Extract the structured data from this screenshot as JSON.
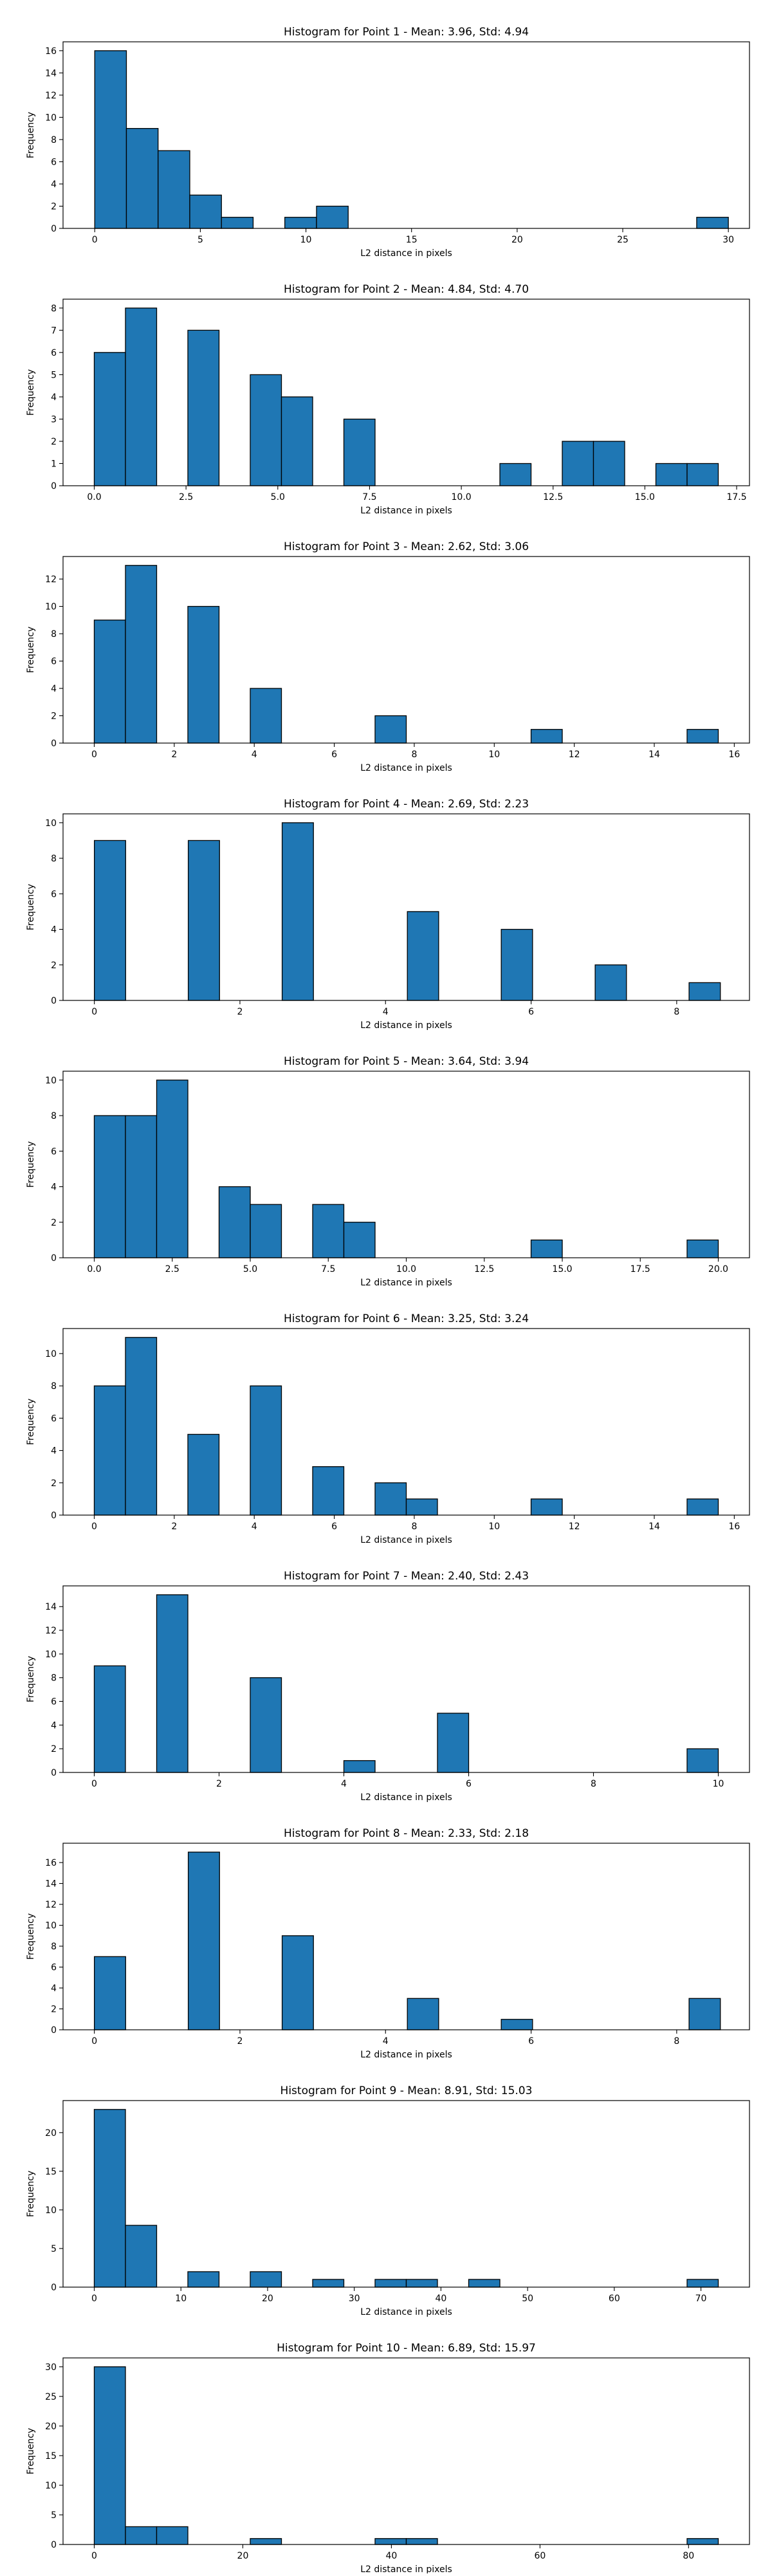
{
  "figure": {
    "background": "#ffffff",
    "bar_color": "#1f77b4",
    "edge_color": "#000000"
  },
  "chart_data": [
    {
      "type": "bar",
      "title": "Histogram for Point 1 - Mean: 3.96, Std: 4.94",
      "xlabel": "L2 distance in pixels",
      "ylabel": "Frequency",
      "xlim": [
        -1.5,
        31.0
      ],
      "ylim": [
        0,
        16.8
      ],
      "xticks": [
        0,
        5,
        10,
        15,
        20,
        25,
        30
      ],
      "xtick_labels": [
        "0",
        "5",
        "10",
        "15",
        "20",
        "25",
        "30"
      ],
      "yticks": [
        0,
        2,
        4,
        6,
        8,
        10,
        12,
        14,
        16
      ],
      "ytick_labels": [
        "0",
        "2",
        "4",
        "6",
        "8",
        "10",
        "12",
        "14",
        "16"
      ],
      "bin_edges": [
        0.0,
        1.5,
        3.0,
        4.5,
        6.0,
        7.5,
        9.0,
        10.5,
        12.0,
        13.5,
        15.0,
        16.5,
        18.0,
        19.5,
        21.0,
        22.5,
        24.0,
        25.5,
        27.0,
        28.5,
        30.0
      ],
      "values": [
        16,
        9,
        7,
        3,
        1,
        0,
        1,
        2,
        0,
        0,
        0,
        0,
        0,
        0,
        0,
        0,
        0,
        0,
        0,
        1
      ]
    },
    {
      "type": "bar",
      "title": "Histogram for Point 2 - Mean: 4.84, Std: 4.70",
      "xlabel": "L2 distance in pixels",
      "ylabel": "Frequency",
      "xlim": [
        -0.85,
        17.85
      ],
      "ylim": [
        0,
        8.4
      ],
      "xticks": [
        0,
        2.5,
        5,
        7.5,
        10,
        12.5,
        15,
        17.5
      ],
      "xtick_labels": [
        "0.0",
        "2.5",
        "5.0",
        "7.5",
        "10.0",
        "12.5",
        "15.0",
        "17.5"
      ],
      "yticks": [
        0,
        1,
        2,
        3,
        4,
        5,
        6,
        7,
        8
      ],
      "ytick_labels": [
        "0",
        "1",
        "2",
        "3",
        "4",
        "5",
        "6",
        "7",
        "8"
      ],
      "bin_edges": [
        0.0,
        0.85,
        1.7,
        2.55,
        3.4,
        4.25,
        5.1,
        5.95,
        6.8,
        7.65,
        8.5,
        9.35,
        10.2,
        11.05,
        11.9,
        12.75,
        13.6,
        14.45,
        15.3,
        16.15,
        17.0
      ],
      "values": [
        6,
        8,
        0,
        7,
        0,
        5,
        4,
        0,
        3,
        0,
        0,
        0,
        0,
        1,
        0,
        2,
        2,
        0,
        1,
        1
      ]
    },
    {
      "type": "bar",
      "title": "Histogram for Point 3 - Mean: 2.62, Std: 3.06",
      "xlabel": "L2 distance in pixels",
      "ylabel": "Frequency",
      "xlim": [
        -0.78,
        16.38
      ],
      "ylim": [
        0,
        13.65
      ],
      "xticks": [
        0,
        2,
        4,
        6,
        8,
        10,
        12,
        14,
        16
      ],
      "xtick_labels": [
        "0",
        "2",
        "4",
        "6",
        "8",
        "10",
        "12",
        "14",
        "16"
      ],
      "yticks": [
        0,
        2,
        4,
        6,
        8,
        10,
        12
      ],
      "ytick_labels": [
        "0",
        "2",
        "4",
        "6",
        "8",
        "10",
        "12"
      ],
      "bin_edges": [
        0.0,
        0.78,
        1.56,
        2.34,
        3.12,
        3.9,
        4.68,
        5.46,
        6.24,
        7.02,
        7.8,
        8.58,
        9.36,
        10.14,
        10.92,
        11.7,
        12.48,
        13.26,
        14.04,
        14.82,
        15.6
      ],
      "values": [
        9,
        13,
        0,
        10,
        0,
        4,
        0,
        0,
        0,
        2,
        0,
        0,
        0,
        0,
        1,
        0,
        0,
        0,
        0,
        1
      ]
    },
    {
      "type": "bar",
      "title": "Histogram for Point 4 - Mean: 2.69, Std: 2.23",
      "xlabel": "L2 distance in pixels",
      "ylabel": "Frequency",
      "xlim": [
        -0.43,
        9.0
      ],
      "ylim": [
        0,
        10.5
      ],
      "xticks": [
        0,
        2,
        4,
        6,
        8
      ],
      "xtick_labels": [
        "0",
        "2",
        "4",
        "6",
        "8"
      ],
      "yticks": [
        0,
        2,
        4,
        6,
        8,
        10
      ],
      "ytick_labels": [
        "0",
        "2",
        "4",
        "6",
        "8",
        "10"
      ],
      "bin_edges": [
        0.0,
        0.43,
        0.86,
        1.29,
        1.72,
        2.15,
        2.58,
        3.01,
        3.44,
        3.87,
        4.3,
        4.73,
        5.16,
        5.59,
        6.02,
        6.45,
        6.88,
        7.31,
        7.74,
        8.17,
        8.6
      ],
      "values": [
        9,
        0,
        0,
        9,
        0,
        0,
        10,
        0,
        0,
        0,
        5,
        0,
        0,
        4,
        0,
        0,
        2,
        0,
        0,
        1
      ]
    },
    {
      "type": "bar",
      "title": "Histogram for Point 5 - Mean: 3.64, Std: 3.94",
      "xlabel": "L2 distance in pixels",
      "ylabel": "Frequency",
      "xlim": [
        -1.0,
        21.0
      ],
      "ylim": [
        0,
        10.5
      ],
      "xticks": [
        0,
        2.5,
        5,
        7.5,
        10,
        12.5,
        15,
        17.5,
        20
      ],
      "xtick_labels": [
        "0.0",
        "2.5",
        "5.0",
        "7.5",
        "10.0",
        "12.5",
        "15.0",
        "17.5",
        "20.0"
      ],
      "yticks": [
        0,
        2,
        4,
        6,
        8,
        10
      ],
      "ytick_labels": [
        "0",
        "2",
        "4",
        "6",
        "8",
        "10"
      ],
      "bin_edges": [
        0.0,
        1.0,
        2.0,
        3.0,
        4.0,
        5.0,
        6.0,
        7.0,
        8.0,
        9.0,
        10.0,
        11.0,
        12.0,
        13.0,
        14.0,
        15.0,
        16.0,
        17.0,
        18.0,
        19.0,
        20.0
      ],
      "values": [
        8,
        8,
        10,
        0,
        4,
        3,
        0,
        3,
        2,
        0,
        0,
        0,
        0,
        0,
        1,
        0,
        0,
        0,
        0,
        1
      ]
    },
    {
      "type": "bar",
      "title": "Histogram for Point 6 - Mean: 3.25, Std: 3.24",
      "xlabel": "L2 distance in pixels",
      "ylabel": "Frequency",
      "xlim": [
        -0.78,
        16.38
      ],
      "ylim": [
        0,
        11.55
      ],
      "xticks": [
        0,
        2,
        4,
        6,
        8,
        10,
        12,
        14,
        16
      ],
      "xtick_labels": [
        "0",
        "2",
        "4",
        "6",
        "8",
        "10",
        "12",
        "14",
        "16"
      ],
      "yticks": [
        0,
        2,
        4,
        6,
        8,
        10
      ],
      "ytick_labels": [
        "0",
        "2",
        "4",
        "6",
        "8",
        "10"
      ],
      "bin_edges": [
        0.0,
        0.78,
        1.56,
        2.34,
        3.12,
        3.9,
        4.68,
        5.46,
        6.24,
        7.02,
        7.8,
        8.58,
        9.36,
        10.14,
        10.92,
        11.7,
        12.48,
        13.26,
        14.04,
        14.82,
        15.6
      ],
      "values": [
        8,
        11,
        0,
        5,
        0,
        8,
        0,
        3,
        0,
        2,
        1,
        0,
        0,
        0,
        1,
        0,
        0,
        0,
        0,
        1
      ]
    },
    {
      "type": "bar",
      "title": "Histogram for Point 7 - Mean: 2.40, Std: 2.43",
      "xlabel": "L2 distance in pixels",
      "ylabel": "Frequency",
      "xlim": [
        -0.5,
        10.5
      ],
      "ylim": [
        0,
        15.75
      ],
      "xticks": [
        0,
        2,
        4,
        6,
        8,
        10
      ],
      "xtick_labels": [
        "0",
        "2",
        "4",
        "6",
        "8",
        "10"
      ],
      "yticks": [
        0,
        2,
        4,
        6,
        8,
        10,
        12,
        14
      ],
      "ytick_labels": [
        "0",
        "2",
        "4",
        "6",
        "8",
        "10",
        "12",
        "14"
      ],
      "bin_edges": [
        0.0,
        0.5,
        1.0,
        1.5,
        2.0,
        2.5,
        3.0,
        3.5,
        4.0,
        4.5,
        5.0,
        5.5,
        6.0,
        6.5,
        7.0,
        7.5,
        8.0,
        8.5,
        9.0,
        9.5,
        10.0
      ],
      "values": [
        9,
        0,
        15,
        0,
        0,
        8,
        0,
        0,
        1,
        0,
        0,
        5,
        0,
        0,
        0,
        0,
        0,
        0,
        0,
        2
      ]
    },
    {
      "type": "bar",
      "title": "Histogram for Point 8 - Mean: 2.33, Std: 2.18",
      "xlabel": "L2 distance in pixels",
      "ylabel": "Frequency",
      "xlim": [
        -0.43,
        9.0
      ],
      "ylim": [
        0,
        17.85
      ],
      "xticks": [
        0,
        2,
        4,
        6,
        8
      ],
      "xtick_labels": [
        "0",
        "2",
        "4",
        "6",
        "8"
      ],
      "yticks": [
        0,
        2,
        4,
        6,
        8,
        10,
        12,
        14,
        16
      ],
      "ytick_labels": [
        "0",
        "2",
        "4",
        "6",
        "8",
        "10",
        "12",
        "14",
        "16"
      ],
      "bin_edges": [
        0.0,
        0.43,
        0.86,
        1.29,
        1.72,
        2.15,
        2.58,
        3.01,
        3.44,
        3.87,
        4.3,
        4.73,
        5.16,
        5.59,
        6.02,
        6.45,
        6.88,
        7.31,
        7.74,
        8.17,
        8.6
      ],
      "values": [
        7,
        0,
        0,
        17,
        0,
        0,
        9,
        0,
        0,
        0,
        3,
        0,
        0,
        1,
        0,
        0,
        0,
        0,
        0,
        3
      ]
    },
    {
      "type": "bar",
      "title": "Histogram for Point 9 - Mean: 8.91, Std: 15.03",
      "xlabel": "L2 distance in pixels",
      "ylabel": "Frequency",
      "xlim": [
        -3.6,
        75.6
      ],
      "ylim": [
        0,
        24.15
      ],
      "xticks": [
        0,
        10,
        20,
        30,
        40,
        50,
        60,
        70
      ],
      "xtick_labels": [
        "0",
        "10",
        "20",
        "30",
        "40",
        "50",
        "60",
        "70"
      ],
      "yticks": [
        0,
        5,
        10,
        15,
        20
      ],
      "ytick_labels": [
        "0",
        "5",
        "10",
        "15",
        "20"
      ],
      "bin_edges": [
        0.0,
        3.6,
        7.2,
        10.8,
        14.4,
        18.0,
        21.6,
        25.2,
        28.8,
        32.4,
        36.0,
        39.6,
        43.2,
        46.8,
        50.4,
        54.0,
        57.6,
        61.2,
        64.8,
        68.4,
        72.0
      ],
      "values": [
        23,
        8,
        0,
        2,
        0,
        2,
        0,
        1,
        0,
        1,
        1,
        0,
        1,
        0,
        0,
        0,
        0,
        0,
        0,
        1
      ]
    },
    {
      "type": "bar",
      "title": "Histogram for Point 10 - Mean: 6.89, Std: 15.97",
      "xlabel": "L2 distance in pixels",
      "ylabel": "Frequency",
      "xlim": [
        -4.2,
        88.2
      ],
      "ylim": [
        0,
        31.5
      ],
      "xticks": [
        0,
        20,
        40,
        60,
        80
      ],
      "xtick_labels": [
        "0",
        "20",
        "40",
        "60",
        "80"
      ],
      "yticks": [
        0,
        5,
        10,
        15,
        20,
        25,
        30
      ],
      "ytick_labels": [
        "0",
        "5",
        "10",
        "15",
        "20",
        "25",
        "30"
      ],
      "bin_edges": [
        0.0,
        4.2,
        8.4,
        12.6,
        16.8,
        21.0,
        25.2,
        29.4,
        33.6,
        37.8,
        42.0,
        46.2,
        50.4,
        54.6,
        58.8,
        63.0,
        67.2,
        71.4,
        75.6,
        79.8,
        84.0
      ],
      "values": [
        30,
        3,
        3,
        0,
        0,
        1,
        0,
        0,
        0,
        1,
        1,
        0,
        0,
        0,
        0,
        0,
        0,
        0,
        0,
        1
      ]
    }
  ]
}
